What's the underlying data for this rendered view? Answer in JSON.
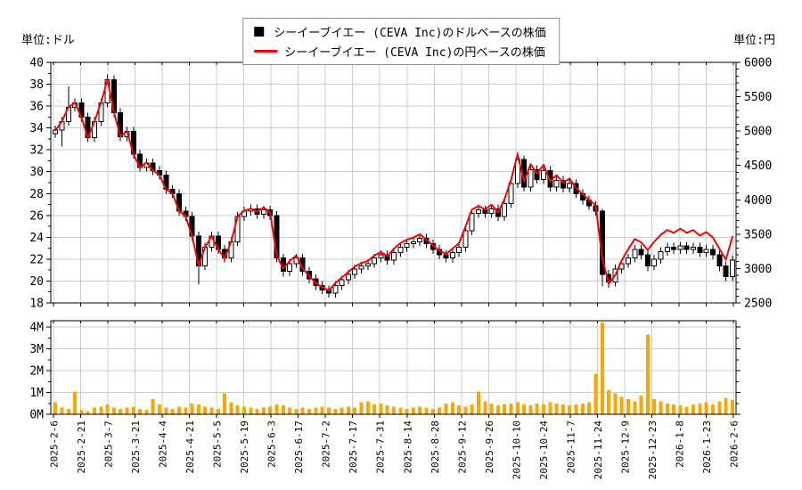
{
  "units": {
    "left": "単位:ドル",
    "right": "単位:円"
  },
  "legend": {
    "usd_label": "シーイーブイエー (CEVA Inc)のドルベースの株価",
    "jpy_label": "シーイーブイエー (CEVA Inc)の円ベースの株価",
    "usd_marker_color": "#000000",
    "jpy_marker_color": "#ff0000"
  },
  "chart_data": {
    "type": "candlestick+line+volume-bar",
    "title": "CEVA Inc stock price in USD (candles, left axis) and JPY (red line, right axis) with volume subplot",
    "price_axis": {
      "unit": "単位:ドル",
      "min": 18,
      "max": 40,
      "step": 2,
      "tick_labels": [
        "18",
        "20",
        "22",
        "24",
        "26",
        "28",
        "30",
        "32",
        "34",
        "36",
        "38",
        "40"
      ]
    },
    "yen_axis": {
      "unit": "単位:円",
      "min": 2500,
      "max": 6000,
      "step": 500,
      "tick_labels": [
        "2500",
        "3000",
        "3500",
        "4000",
        "4500",
        "5000",
        "5500",
        "6000"
      ]
    },
    "volume_axis": {
      "min": 0,
      "max": 4,
      "step": 1,
      "tick_labels": [
        "0M",
        "1M",
        "2M",
        "3M",
        "4M"
      ]
    },
    "x_tick_labels": [
      "2025-2-6",
      "2025-2-21",
      "2025-3-7",
      "2025-3-21",
      "2025-4-4",
      "2025-4-21",
      "2025-5-5",
      "2025-5-19",
      "2025-6-3",
      "2025-6-17",
      "2025-7-2",
      "2025-7-17",
      "2025-7-31",
      "2025-8-14",
      "2025-8-28",
      "2025-9-12",
      "2025-9-26",
      "2025-10-10",
      "2025-10-24",
      "2025-11-7",
      "2025-11-24",
      "2025-12-9",
      "2025-12-23",
      "2026-1-8",
      "2026-1-23",
      "2026-2-6"
    ],
    "colors": {
      "candle_up": "#ffffff",
      "candle_down": "#000000",
      "candle_stroke": "#000000",
      "yen_line": "#ff0000",
      "volume_bar": "#ffa500",
      "grid": "#cccccc",
      "axis": "#000000"
    },
    "candles_usd_ohlc": [
      [
        33.5,
        34.2,
        33.1,
        33.8
      ],
      [
        33.8,
        35.0,
        32.3,
        34.6
      ],
      [
        34.6,
        37.8,
        34.2,
        35.9
      ],
      [
        35.9,
        36.7,
        35.5,
        36.3
      ],
      [
        36.3,
        36.7,
        34.6,
        35.0
      ],
      [
        35.0,
        35.4,
        32.7,
        33.1
      ],
      [
        33.1,
        35.0,
        32.7,
        34.6
      ],
      [
        34.6,
        36.7,
        34.2,
        36.3
      ],
      [
        36.3,
        38.9,
        35.9,
        38.4
      ],
      [
        38.4,
        38.8,
        35.0,
        35.4
      ],
      [
        35.4,
        35.8,
        32.8,
        33.2
      ],
      [
        33.2,
        34.1,
        32.8,
        33.7
      ],
      [
        33.7,
        34.1,
        31.2,
        31.6
      ],
      [
        31.6,
        32.0,
        30.0,
        30.4
      ],
      [
        30.4,
        31.2,
        30.0,
        30.8
      ],
      [
        30.8,
        31.2,
        29.7,
        30.1
      ],
      [
        30.1,
        30.5,
        29.3,
        29.7
      ],
      [
        29.7,
        30.1,
        28.0,
        28.4
      ],
      [
        28.4,
        28.8,
        27.6,
        28.0
      ],
      [
        28.0,
        28.4,
        26.0,
        26.4
      ],
      [
        26.4,
        26.8,
        25.5,
        25.9
      ],
      [
        25.9,
        26.3,
        23.7,
        24.1
      ],
      [
        24.1,
        24.5,
        19.7,
        21.4
      ],
      [
        21.4,
        23.5,
        21.0,
        23.1
      ],
      [
        23.1,
        24.5,
        22.7,
        24.1
      ],
      [
        24.1,
        24.5,
        22.5,
        22.9
      ],
      [
        22.9,
        23.3,
        21.7,
        22.1
      ],
      [
        22.1,
        24.0,
        21.7,
        23.6
      ],
      [
        23.6,
        26.3,
        23.2,
        25.9
      ],
      [
        25.9,
        26.8,
        25.5,
        26.4
      ],
      [
        26.4,
        27.0,
        26.0,
        26.6
      ],
      [
        26.6,
        27.0,
        25.7,
        26.1
      ],
      [
        26.1,
        26.9,
        25.7,
        26.5
      ],
      [
        26.5,
        26.9,
        25.6,
        26.0
      ],
      [
        26.0,
        26.4,
        21.7,
        22.1
      ],
      [
        22.1,
        22.5,
        20.4,
        20.9
      ],
      [
        20.9,
        22.0,
        20.5,
        21.6
      ],
      [
        21.6,
        22.5,
        21.2,
        22.1
      ],
      [
        22.1,
        22.5,
        20.5,
        20.9
      ],
      [
        20.9,
        21.3,
        19.8,
        20.2
      ],
      [
        20.2,
        20.6,
        19.2,
        19.6
      ],
      [
        19.6,
        20.0,
        18.8,
        19.2
      ],
      [
        19.2,
        19.6,
        18.5,
        18.9
      ],
      [
        18.9,
        20.0,
        18.5,
        19.6
      ],
      [
        19.6,
        20.5,
        19.2,
        20.1
      ],
      [
        20.1,
        21.0,
        19.7,
        20.6
      ],
      [
        20.6,
        21.5,
        20.2,
        21.1
      ],
      [
        21.1,
        21.8,
        20.7,
        21.4
      ],
      [
        21.4,
        22.0,
        21.0,
        21.6
      ],
      [
        21.6,
        22.5,
        21.2,
        22.1
      ],
      [
        22.1,
        22.8,
        21.7,
        22.4
      ],
      [
        22.4,
        22.8,
        21.5,
        21.9
      ],
      [
        21.9,
        23.0,
        21.5,
        22.6
      ],
      [
        22.6,
        23.5,
        22.2,
        23.1
      ],
      [
        23.1,
        23.8,
        22.7,
        23.4
      ],
      [
        23.4,
        24.0,
        23.0,
        23.6
      ],
      [
        23.6,
        24.3,
        23.2,
        23.9
      ],
      [
        23.9,
        24.3,
        23.0,
        23.4
      ],
      [
        23.4,
        23.8,
        22.5,
        22.9
      ],
      [
        22.9,
        23.3,
        22.0,
        22.4
      ],
      [
        22.4,
        22.8,
        21.7,
        22.1
      ],
      [
        22.1,
        23.0,
        21.7,
        22.6
      ],
      [
        22.6,
        23.5,
        22.2,
        23.1
      ],
      [
        23.1,
        25.0,
        22.7,
        24.6
      ],
      [
        24.6,
        26.6,
        24.2,
        26.2
      ],
      [
        26.2,
        27.0,
        25.8,
        26.5
      ],
      [
        26.5,
        26.9,
        25.8,
        26.2
      ],
      [
        26.2,
        27.0,
        25.8,
        26.6
      ],
      [
        26.6,
        27.0,
        25.5,
        25.9
      ],
      [
        25.9,
        27.5,
        25.5,
        27.1
      ],
      [
        27.1,
        29.3,
        26.7,
        28.9
      ],
      [
        28.9,
        31.8,
        28.5,
        31.1
      ],
      [
        31.1,
        31.5,
        28.2,
        28.6
      ],
      [
        28.6,
        30.6,
        28.2,
        30.2
      ],
      [
        30.2,
        30.6,
        28.9,
        29.3
      ],
      [
        29.3,
        30.5,
        28.9,
        30.1
      ],
      [
        30.1,
        30.5,
        28.2,
        28.6
      ],
      [
        28.6,
        29.6,
        28.2,
        29.2
      ],
      [
        29.2,
        29.6,
        28.1,
        28.5
      ],
      [
        28.5,
        29.3,
        28.1,
        28.9
      ],
      [
        28.9,
        29.3,
        27.6,
        28.0
      ],
      [
        28.0,
        28.4,
        27.0,
        27.4
      ],
      [
        27.4,
        27.8,
        26.5,
        26.9
      ],
      [
        26.9,
        27.3,
        26.0,
        26.4
      ],
      [
        26.4,
        26.6,
        19.5,
        20.6
      ],
      [
        20.6,
        21.0,
        19.4,
        19.9
      ],
      [
        19.9,
        21.5,
        19.5,
        21.1
      ],
      [
        21.1,
        22.0,
        20.7,
        21.6
      ],
      [
        21.6,
        22.5,
        21.2,
        22.1
      ],
      [
        22.1,
        23.3,
        21.7,
        22.9
      ],
      [
        22.9,
        23.3,
        22.0,
        22.4
      ],
      [
        22.4,
        22.8,
        20.9,
        21.4
      ],
      [
        21.4,
        22.4,
        21.0,
        22.0
      ],
      [
        22.0,
        23.1,
        21.6,
        22.7
      ],
      [
        22.7,
        23.5,
        22.3,
        23.1
      ],
      [
        23.1,
        23.5,
        22.5,
        22.9
      ],
      [
        22.9,
        23.6,
        22.5,
        23.2
      ],
      [
        23.2,
        23.6,
        22.5,
        22.9
      ],
      [
        22.9,
        23.5,
        22.5,
        23.1
      ],
      [
        23.1,
        23.5,
        22.2,
        22.6
      ],
      [
        22.6,
        23.3,
        22.2,
        22.9
      ],
      [
        22.9,
        23.3,
        22.0,
        22.4
      ],
      [
        22.4,
        22.8,
        20.9,
        21.4
      ],
      [
        21.4,
        21.8,
        20.0,
        20.4
      ],
      [
        20.4,
        22.3,
        20.0,
        21.9
      ]
    ],
    "yen_close": [
      5010,
      5140,
      5350,
      5410,
      5200,
      4900,
      5140,
      5410,
      5750,
      5270,
      4920,
      5000,
      4660,
      4470,
      4540,
      4430,
      4360,
      4150,
      4090,
      3840,
      3760,
      3470,
      3040,
      3310,
      3470,
      3280,
      3150,
      3390,
      3760,
      3840,
      3870,
      3830,
      3890,
      3810,
      3190,
      3000,
      3110,
      3190,
      3000,
      2890,
      2790,
      2730,
      2680,
      2790,
      2870,
      2950,
      3030,
      3080,
      3110,
      3190,
      3240,
      3180,
      3290,
      3370,
      3420,
      3450,
      3500,
      3420,
      3340,
      3260,
      3210,
      3290,
      3370,
      3610,
      3860,
      3910,
      3860,
      3930,
      3820,
      4010,
      4290,
      4660,
      4270,
      4520,
      4380,
      4510,
      4270,
      4360,
      4250,
      4310,
      4170,
      4080,
      4000,
      3920,
      3150,
      2780,
      2900,
      3120,
      3280,
      3430,
      3380,
      3270,
      3390,
      3490,
      3560,
      3520,
      3580,
      3520,
      3560,
      3480,
      3530,
      3450,
      3290,
      3130,
      3460
    ],
    "volume_millions": [
      0.55,
      0.3,
      0.25,
      1.05,
      0.2,
      0.15,
      0.3,
      0.35,
      0.45,
      0.3,
      0.25,
      0.3,
      0.35,
      0.25,
      0.2,
      0.7,
      0.45,
      0.3,
      0.25,
      0.35,
      0.3,
      0.5,
      0.45,
      0.35,
      0.3,
      0.25,
      0.95,
      0.55,
      0.4,
      0.35,
      0.3,
      0.25,
      0.3,
      0.35,
      0.45,
      0.4,
      0.3,
      0.25,
      0.3,
      0.25,
      0.3,
      0.35,
      0.3,
      0.25,
      0.3,
      0.35,
      0.3,
      0.55,
      0.6,
      0.45,
      0.5,
      0.4,
      0.35,
      0.3,
      0.25,
      0.3,
      0.35,
      0.3,
      0.25,
      0.3,
      0.5,
      0.55,
      0.4,
      0.35,
      0.45,
      1.05,
      0.6,
      0.5,
      0.4,
      0.45,
      0.5,
      0.55,
      0.45,
      0.4,
      0.5,
      0.45,
      0.55,
      0.5,
      0.45,
      0.4,
      0.45,
      0.5,
      0.55,
      1.85,
      4.2,
      1.1,
      0.95,
      0.8,
      0.7,
      0.6,
      0.85,
      3.65,
      0.7,
      0.6,
      0.5,
      0.45,
      0.4,
      0.35,
      0.45,
      0.5,
      0.55,
      0.45,
      0.6,
      0.75,
      0.65
    ]
  }
}
